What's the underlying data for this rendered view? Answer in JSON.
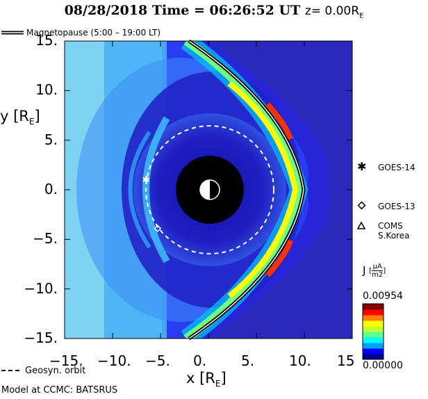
{
  "header": {
    "date_time": "08/28/2018 Time = 06:26:52 UT",
    "z_label": "z= 0.00R",
    "z_sub": "E"
  },
  "legend": {
    "magnetopause_label": "Magnetopause (5:00 – 19:00 LT)",
    "geosyn_label": "Geosyn. orbit",
    "model_credit": "Model at CCMC: BATSRUS"
  },
  "satellites": [
    {
      "name": "GOES-14",
      "symbol": "asterisk",
      "x": -6.5,
      "y": 1.0
    },
    {
      "name": "GOES-13",
      "symbol": "diamond",
      "x": -5.3,
      "y": -3.9
    },
    {
      "name": "COMS S.Korea",
      "symbol": "triangle",
      "x": null,
      "y": null
    }
  ],
  "colorbar": {
    "label": "J",
    "unit_num": "μA",
    "unit_den": "m2",
    "max_label": "0.00954",
    "min_label": "0.00000",
    "colors": [
      "#00008f",
      "#0000ff",
      "#00a0ff",
      "#00ffff",
      "#60ff90",
      "#c0ff30",
      "#ffff00",
      "#ff8000",
      "#ff0000",
      "#800000"
    ]
  },
  "chart_data": {
    "type": "heatmap",
    "title": "08/28/2018 Time = 06:26:52 UT",
    "quantity": "J",
    "value_range": [
      0.0,
      0.00954
    ],
    "xlabel": "x [RE]",
    "ylabel": "y [RE]",
    "xlim": [
      -15,
      15
    ],
    "ylim": [
      -15,
      15
    ],
    "x_ticks": [
      -15,
      -10,
      -5,
      0,
      5,
      10,
      15
    ],
    "x_tick_labels": [
      "−15.",
      "−10.",
      "−5.",
      "0.",
      "5.",
      "10.",
      "15"
    ],
    "y_ticks": [
      15,
      10,
      5,
      0,
      -5,
      -10,
      -15
    ],
    "y_tick_labels": [
      "15.",
      "10.",
      "5.",
      "0.",
      "−5.",
      "−10.",
      "−15."
    ],
    "earth_exclusion_radius": 3.5,
    "geosync_orbit_radius": 6.6,
    "magnetopause_standoff": 9.8,
    "magnetopause_flank_y": 15
  }
}
